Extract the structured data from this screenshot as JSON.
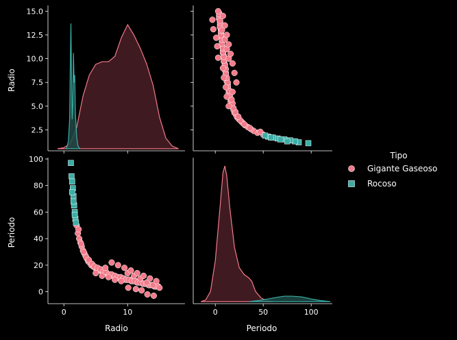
{
  "legend": {
    "title": "Tipo",
    "placement": "right",
    "items": [
      {
        "label": "Gigante Gaseoso",
        "color": "#f37b8a",
        "marker": "circle"
      },
      {
        "label": "Rocoso",
        "color": "#3aaea6",
        "marker": "square"
      }
    ]
  },
  "colors": {
    "background": "#000000",
    "gaseoso_fill": "#4b1f27",
    "gaseoso_line": "#f37b8a",
    "rocoso_fill": "#1f4a47",
    "rocoso_line": "#3aaea6"
  },
  "chart_data": {
    "type": "scatter",
    "variables": [
      "Radio",
      "Periodo"
    ],
    "hue": "Tipo",
    "axes": {
      "Radio": {
        "label": "Radio",
        "range": [
          -2.5,
          19
        ],
        "ticks_x": [
          0,
          10
        ],
        "ticks_y": [
          2.5,
          5.0,
          7.5,
          10.0,
          12.5,
          15.0
        ],
        "ylim": [
          0.3,
          15.6
        ]
      },
      "Periodo": {
        "label": "Periodo",
        "range": [
          -23,
          122
        ],
        "ticks_x": [
          0,
          50,
          100
        ],
        "ticks_y": [
          0,
          20,
          40,
          60,
          80,
          100
        ],
        "ylim": [
          -9,
          101
        ]
      }
    },
    "series": [
      {
        "name": "Gigante Gaseoso",
        "radio": [
          2.0,
          2.2,
          2.4,
          2.6,
          2.8,
          3.0,
          3.2,
          3.4,
          3.6,
          3.8,
          4.0,
          4.3,
          4.6,
          4.9,
          5.2,
          5.5,
          5.8,
          6.1,
          6.4,
          6.7,
          7.0,
          7.3,
          7.6,
          7.9,
          8.2,
          8.5,
          8.8,
          9.1,
          9.4,
          9.7,
          10.0,
          10.3,
          10.6,
          10.9,
          11.2,
          11.5,
          11.8,
          12.1,
          12.4,
          12.7,
          13.0,
          13.3,
          13.6,
          13.9,
          14.2,
          14.5,
          14.8,
          2.3,
          2.7,
          3.1,
          3.5,
          3.9,
          4.4,
          4.8,
          5.3,
          5.7,
          6.2,
          6.6,
          7.1,
          7.5,
          8.0,
          8.4,
          8.9,
          9.3,
          9.8,
          10.2,
          10.7,
          11.1,
          11.6,
          12.0,
          12.5,
          12.9,
          13.4,
          13.8,
          14.3,
          14.7,
          15.0,
          5.0,
          6.0,
          7.0,
          8.0,
          9.0,
          10.0,
          11.0,
          12.0,
          13.0,
          14.0,
          9.5,
          10.5,
          11.5,
          12.5,
          13.5,
          14.5,
          8.5,
          7.5,
          6.5,
          10.1,
          11.3,
          12.2,
          13.1,
          14.1
        ],
        "periodo": [
          50,
          44,
          40,
          37,
          34,
          31,
          29,
          27,
          25,
          23,
          22,
          20,
          19,
          18,
          17,
          16,
          16,
          15,
          14,
          14,
          13,
          13,
          12,
          12,
          11,
          11,
          10,
          10,
          10,
          9,
          9,
          9,
          8,
          8,
          8,
          7,
          7,
          7,
          6,
          6,
          6,
          5,
          5,
          5,
          4,
          4,
          4,
          47,
          36,
          30,
          26,
          24,
          21,
          19,
          18,
          17,
          15,
          15,
          13,
          13,
          12,
          11,
          11,
          10,
          9,
          9,
          8,
          8,
          7,
          7,
          6,
          6,
          5,
          5,
          4,
          4,
          3,
          14,
          12,
          11,
          9,
          8,
          14,
          12,
          10,
          7,
          5,
          18,
          16,
          14,
          12,
          10,
          8,
          20,
          22,
          18,
          3,
          2,
          1,
          -2,
          -3
        ],
        "color": "#f37b8a"
      },
      {
        "name": "Rocoso",
        "radio": [
          1.1,
          1.2,
          1.3,
          1.4,
          1.5,
          1.6,
          1.7,
          1.8,
          1.9,
          1.3,
          1.5,
          1.7
        ],
        "periodo": [
          97,
          87,
          83,
          78,
          72,
          65,
          60,
          55,
          52,
          75,
          68,
          58
        ],
        "color": "#3aaea6"
      }
    ],
    "kde": {
      "Radio": {
        "Gigante Gaseoso": {
          "x": [
            -1,
            0,
            1,
            2,
            3,
            4,
            5,
            6,
            7,
            8,
            9,
            10,
            11,
            12,
            13,
            14,
            15,
            16,
            17,
            18
          ],
          "density": [
            0.0,
            0.002,
            0.01,
            0.04,
            0.1,
            0.14,
            0.16,
            0.165,
            0.165,
            0.175,
            0.21,
            0.235,
            0.215,
            0.19,
            0.16,
            0.12,
            0.06,
            0.02,
            0.005,
            0.0
          ]
        },
        "Rocoso": {
          "x": [
            0.4,
            0.7,
            0.9,
            1.0,
            1.1,
            1.2,
            1.3,
            1.4,
            1.5,
            1.6,
            1.7,
            1.8,
            2.0,
            2.2,
            2.5
          ],
          "density": [
            0.0,
            0.05,
            0.2,
            0.55,
            0.85,
            0.5,
            0.2,
            0.3,
            0.65,
            0.45,
            0.5,
            0.25,
            0.08,
            0.02,
            0.0
          ]
        }
      },
      "Periodo": {
        "Gigante Gaseoso": {
          "x": [
            -15,
            -10,
            -5,
            0,
            5,
            8,
            10,
            12,
            15,
            20,
            25,
            30,
            35,
            38,
            42,
            48,
            55,
            60
          ],
          "density": [
            0.0,
            0.005,
            0.03,
            0.12,
            0.28,
            0.38,
            0.4,
            0.37,
            0.28,
            0.16,
            0.1,
            0.08,
            0.07,
            0.06,
            0.03,
            0.01,
            0.002,
            0.0
          ]
        },
        "Rocoso": {
          "x": [
            35,
            45,
            55,
            65,
            72,
            80,
            90,
            100,
            110,
            120
          ],
          "density": [
            0.0,
            0.003,
            0.008,
            0.013,
            0.016,
            0.016,
            0.014,
            0.008,
            0.003,
            0.0
          ]
        }
      }
    }
  }
}
